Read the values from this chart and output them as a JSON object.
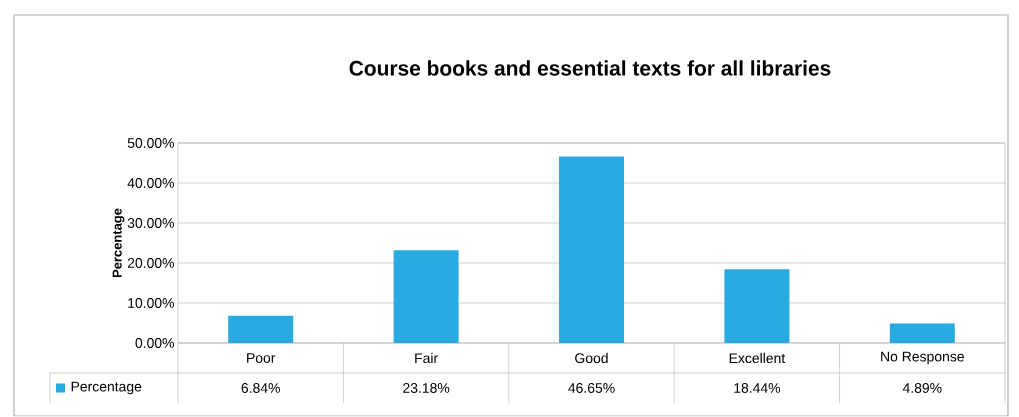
{
  "chart_data": {
    "type": "bar",
    "title": "Course books and essential texts for all libraries",
    "ylabel": "Percentage",
    "categories": [
      "Poor",
      "Fair",
      "Good",
      "Excellent",
      "No Response"
    ],
    "series": [
      {
        "name": "Percentage",
        "color": "#29abe2",
        "values": [
          6.84,
          23.18,
          46.65,
          18.44,
          4.89
        ],
        "value_labels": [
          "6.84%",
          "23.18%",
          "46.65%",
          "18.44%",
          "4.89%"
        ]
      }
    ],
    "ylim": [
      0,
      50
    ],
    "yticks": [
      {
        "value": 0,
        "label": "0.00%"
      },
      {
        "value": 10,
        "label": "10.00%"
      },
      {
        "value": 20,
        "label": "20.00%"
      },
      {
        "value": 30,
        "label": "30.00%"
      },
      {
        "value": 40,
        "label": "40.00%"
      },
      {
        "value": 50,
        "label": "50.00%"
      }
    ],
    "grid": "y",
    "legend": "bottom"
  }
}
